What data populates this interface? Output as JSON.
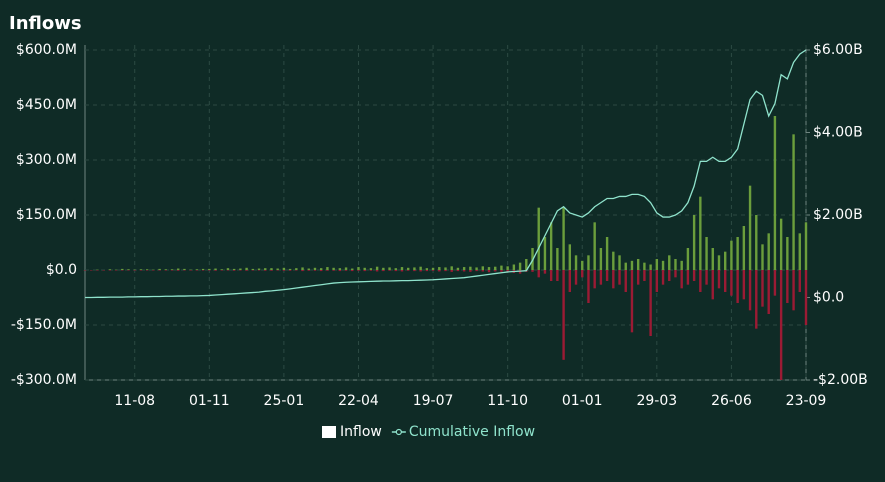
{
  "chart_data": {
    "type": "bar-line",
    "title": "Inflows",
    "categories": [
      null,
      null,
      null,
      null,
      null,
      null,
      null,
      null,
      "11-08",
      null,
      null,
      null,
      null,
      null,
      null,
      null,
      null,
      null,
      null,
      null,
      "01-11",
      null,
      null,
      null,
      null,
      null,
      null,
      null,
      null,
      null,
      null,
      null,
      "25-01",
      null,
      null,
      null,
      null,
      null,
      null,
      null,
      null,
      null,
      null,
      null,
      "22-04",
      null,
      null,
      null,
      null,
      null,
      null,
      null,
      null,
      null,
      null,
      null,
      "19-07",
      null,
      null,
      null,
      null,
      null,
      null,
      null,
      null,
      null,
      null,
      null,
      "11-10",
      null,
      null,
      null,
      null,
      null,
      null,
      null,
      null,
      null,
      null,
      null,
      "01-01",
      null,
      null,
      null,
      null,
      null,
      null,
      null,
      null,
      null,
      null,
      null,
      "29-03",
      null,
      null,
      null,
      null,
      null,
      null,
      null,
      null,
      null,
      null,
      null,
      "26-06",
      null,
      null,
      null,
      null,
      null,
      null,
      null,
      null,
      null,
      null,
      null,
      "23-09"
    ],
    "series": [
      {
        "name": "Inflow",
        "color": "#6b9e3c",
        "values": [
          0,
          0,
          1,
          0,
          2,
          1,
          3,
          2,
          1,
          2,
          2,
          1,
          3,
          2,
          2,
          4,
          3,
          1,
          2,
          3,
          3,
          4,
          2,
          5,
          3,
          4,
          6,
          3,
          4,
          5,
          5,
          4,
          6,
          3,
          5,
          7,
          4,
          6,
          5,
          8,
          6,
          5,
          7,
          4,
          8,
          6,
          5,
          9,
          6,
          7,
          5,
          8,
          6,
          7,
          9,
          5,
          6,
          8,
          7,
          10,
          6,
          8,
          9,
          7,
          10,
          8,
          9,
          12,
          10,
          15,
          20,
          30,
          60,
          170,
          90,
          130,
          60,
          170,
          70,
          40,
          25,
          40,
          130,
          60,
          90,
          50,
          40,
          20,
          25,
          30,
          20,
          15,
          30,
          25,
          40,
          30,
          25,
          60,
          150,
          200,
          90,
          60,
          40,
          50,
          80,
          90,
          120,
          230,
          150,
          70,
          100,
          420,
          140,
          90,
          370,
          100,
          130
        ]
      },
      {
        "color": "#9b1b34",
        "values": [
          0,
          0,
          0,
          0,
          -1,
          0,
          -1,
          0,
          0,
          -1,
          -1,
          0,
          -1,
          -1,
          0,
          -2,
          -1,
          0,
          -1,
          -1,
          -1,
          -2,
          -1,
          -1,
          -2,
          -1,
          -2,
          -1,
          -1,
          -2,
          -2,
          -1,
          -2,
          -2,
          -1,
          -3,
          -2,
          -2,
          -3,
          -2,
          -2,
          -3,
          -2,
          -3,
          -2,
          -3,
          -2,
          -4,
          -3,
          -2,
          -3,
          -4,
          -2,
          -3,
          -4,
          -3,
          -2,
          -4,
          -3,
          -5,
          -3,
          -4,
          -5,
          -3,
          -4,
          -6,
          -4,
          -5,
          -6,
          -8,
          -10,
          -5,
          -5,
          -20,
          -10,
          -30,
          -30,
          -245,
          -60,
          -40,
          -20,
          -90,
          -50,
          -40,
          -30,
          -50,
          -40,
          -60,
          -170,
          -40,
          -30,
          -180,
          -60,
          -40,
          -30,
          -20,
          -50,
          -40,
          -30,
          -60,
          -40,
          -80,
          -50,
          -60,
          -70,
          -90,
          -80,
          -110,
          -160,
          -100,
          -120,
          -70,
          -300,
          -90,
          -110,
          -60,
          -150
        ]
      },
      {
        "name": "Cumulative Inflow",
        "color": "#8fe3cc",
        "axis": "y2",
        "values": [
          0,
          0,
          5,
          5,
          10,
          10,
          10,
          15,
          15,
          20,
          20,
          25,
          25,
          30,
          30,
          35,
          35,
          40,
          40,
          45,
          50,
          60,
          70,
          80,
          90,
          100,
          110,
          120,
          130,
          150,
          160,
          175,
          190,
          210,
          230,
          250,
          270,
          290,
          310,
          330,
          350,
          360,
          370,
          375,
          380,
          385,
          390,
          395,
          400,
          400,
          405,
          410,
          410,
          415,
          420,
          425,
          430,
          440,
          450,
          460,
          470,
          480,
          500,
          520,
          540,
          560,
          580,
          600,
          620,
          630,
          640,
          650,
          900,
          1200,
          1500,
          1800,
          2100,
          2200,
          2050,
          2000,
          1950,
          2050,
          2200,
          2300,
          2400,
          2400,
          2450,
          2450,
          2500,
          2500,
          2450,
          2300,
          2050,
          1950,
          1950,
          2000,
          2100,
          2300,
          2700,
          3300,
          3300,
          3400,
          3300,
          3300,
          3400,
          3600,
          4200,
          4800,
          5000,
          4900,
          4400,
          4700,
          5400,
          5300,
          5700,
          5900,
          6000
        ]
      }
    ],
    "ylim": [
      -300,
      600
    ],
    "yticks": [
      {
        "value": -300,
        "label": "-$300.0M"
      },
      {
        "value": -150,
        "label": "-$150.0M"
      },
      {
        "value": 0,
        "label": "$0.0"
      },
      {
        "value": 150,
        "label": "$150.0M"
      },
      {
        "value": 300,
        "label": "$300.0M"
      },
      {
        "value": 450,
        "label": "$450.0M"
      },
      {
        "value": 600,
        "label": "$600.0M"
      }
    ],
    "y2lim": [
      -2000,
      6000
    ],
    "y2ticks": [
      {
        "value": -2000,
        "label": "-$2.00B"
      },
      {
        "value": 0,
        "label": "$0.0"
      },
      {
        "value": 2000,
        "label": "$2.00B"
      },
      {
        "value": 4000,
        "label": "$4.00B"
      },
      {
        "value": 6000,
        "label": "$6.00B"
      }
    ],
    "grid": true
  }
}
